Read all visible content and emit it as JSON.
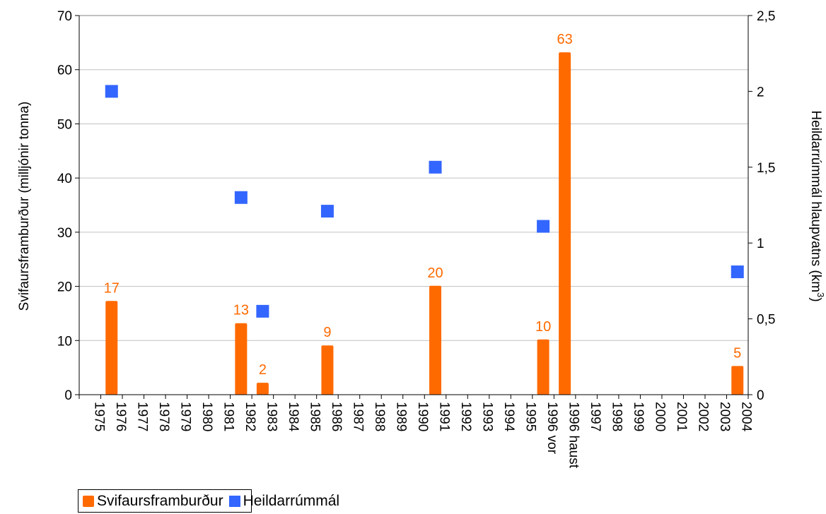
{
  "chart_data": {
    "type": "bar",
    "categories": [
      "1975",
      "1976",
      "1977",
      "1978",
      "1979",
      "1980",
      "1981",
      "1982",
      "1983",
      "1984",
      "1985",
      "1986",
      "1987",
      "1988",
      "1989",
      "1990",
      "1991",
      "1992",
      "1993",
      "1994",
      "1995",
      "1996 vor",
      "1996 haust",
      "1997",
      "1998",
      "1999",
      "2000",
      "2001",
      "2002",
      "2003",
      "2004"
    ],
    "title": "",
    "xlabel": "",
    "ylabel": "Svifaursframburður (milljónir tonna)",
    "ylabel_right": "Heildarrúmmál hlaupvatns (km",
    "ylabel_right_sup": "3",
    "ylabel_right_close": ")",
    "ylim": [
      0,
      70
    ],
    "y_ticks": [
      "0",
      "10",
      "20",
      "30",
      "40",
      "50",
      "60",
      "70"
    ],
    "y2lim": [
      0,
      2.5
    ],
    "y2_ticks": [
      "0",
      "0,5",
      "1",
      "1,5",
      "2",
      "2,5"
    ],
    "grid": true,
    "legend_position": "bottom-left",
    "series": [
      {
        "name": "Svifaursframburður",
        "type": "bar",
        "axis": "left",
        "color": "#FF6A00",
        "label_color": "#FF6A00",
        "points": [
          {
            "category": "1976",
            "value": 17.3,
            "label": "17"
          },
          {
            "category": "1982",
            "value": 13.2,
            "label": "13"
          },
          {
            "category": "1983",
            "value": 2.2,
            "label": "2"
          },
          {
            "category": "1986",
            "value": 9.1,
            "label": "9"
          },
          {
            "category": "1991",
            "value": 20.1,
            "label": "20"
          },
          {
            "category": "1996 vor",
            "value": 10.2,
            "label": "10"
          },
          {
            "category": "1996 haust",
            "value": 63.2,
            "label": "63"
          },
          {
            "category": "2004",
            "value": 5.3,
            "label": "5"
          }
        ]
      },
      {
        "name": "Heildarrúmmál",
        "type": "scatter",
        "axis": "right",
        "color": "#3366FF",
        "points": [
          {
            "category": "1976",
            "value": 2.0
          },
          {
            "category": "1982",
            "value": 1.3
          },
          {
            "category": "1983",
            "value": 0.55
          },
          {
            "category": "1986",
            "value": 1.21
          },
          {
            "category": "1991",
            "value": 1.5
          },
          {
            "category": "1996 vor",
            "value": 1.11
          },
          {
            "category": "2004",
            "value": 0.81
          }
        ]
      }
    ]
  }
}
